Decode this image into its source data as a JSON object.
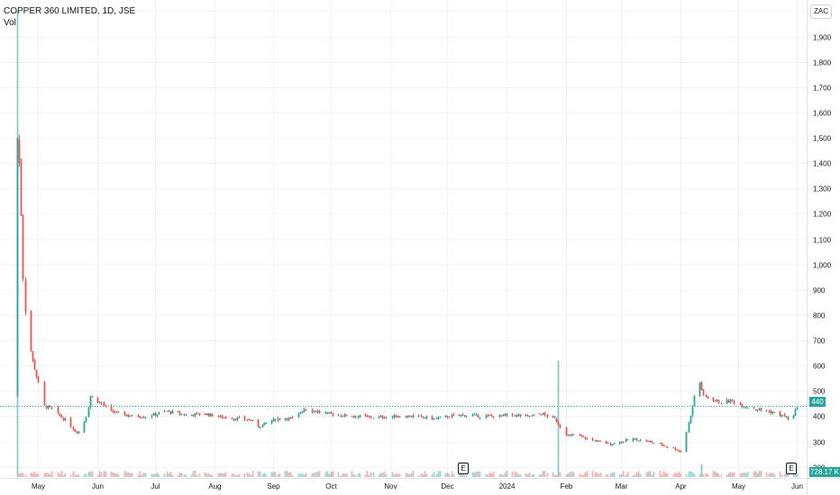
{
  "header": {
    "symbol_line": "COPPER 360 LIMITED, 1D, JSE",
    "volume_label": "Vol"
  },
  "currency_badge": "ZAC",
  "last_price_label": "440",
  "last_volume_label": "728.17 K",
  "earnings_marker_label": "E",
  "colors": {
    "up": "#26a69a",
    "down": "#ef5350",
    "grid": "#f0f3fa",
    "price_line": "#26a69a"
  },
  "chart_data": {
    "type": "candlestick",
    "title": "",
    "ylim": [
      160,
      2030
    ],
    "y_ticks": [
      2000,
      1900,
      1800,
      1700,
      1600,
      1500,
      1400,
      1300,
      1200,
      1100,
      1000,
      900,
      800,
      700,
      600,
      500,
      400,
      300,
      200
    ],
    "y_tick_labels": [
      "2,000",
      "1,900",
      "1,800",
      "1,700",
      "1,600",
      "1,500",
      "1,400",
      "1,300",
      "1,200",
      "1,100",
      "1,000",
      "900",
      "800",
      "700",
      "600",
      "500",
      "400",
      "300",
      "200"
    ],
    "x_labels": [
      "May",
      "Jun",
      "Jul",
      "Aug",
      "Sep",
      "Oct",
      "Nov",
      "Dec",
      "2024",
      "Feb",
      "Mar",
      "Apr",
      "May",
      "Jun"
    ],
    "x_label_days": [
      13,
      44,
      74,
      105,
      136,
      166,
      197,
      227,
      258,
      289,
      318,
      349,
      379,
      410
    ],
    "day_range": [
      -7,
      415
    ],
    "last_price": 440,
    "earnings_days": [
      227,
      410
    ],
    "price_anchors": [
      [
        0,
        480
      ],
      [
        1,
        600
      ],
      [
        2,
        1500
      ],
      [
        3,
        1400
      ],
      [
        4,
        1200
      ],
      [
        5,
        950
      ],
      [
        6,
        820
      ],
      [
        8,
        700
      ],
      [
        10,
        620
      ],
      [
        12,
        560
      ],
      [
        14,
        500
      ],
      [
        16,
        440
      ],
      [
        20,
        430
      ],
      [
        24,
        400
      ],
      [
        28,
        380
      ],
      [
        32,
        340
      ],
      [
        35,
        340
      ],
      [
        38,
        400
      ],
      [
        40,
        480
      ],
      [
        42,
        470
      ],
      [
        46,
        450
      ],
      [
        50,
        420
      ],
      [
        56,
        410
      ],
      [
        62,
        400
      ],
      [
        70,
        400
      ],
      [
        80,
        420
      ],
      [
        90,
        405
      ],
      [
        100,
        410
      ],
      [
        110,
        395
      ],
      [
        118,
        390
      ],
      [
        124,
        385
      ],
      [
        128,
        360
      ],
      [
        134,
        380
      ],
      [
        140,
        395
      ],
      [
        146,
        390
      ],
      [
        152,
        430
      ],
      [
        158,
        420
      ],
      [
        164,
        410
      ],
      [
        170,
        405
      ],
      [
        180,
        400
      ],
      [
        190,
        395
      ],
      [
        200,
        400
      ],
      [
        210,
        400
      ],
      [
        220,
        390
      ],
      [
        228,
        400
      ],
      [
        236,
        405
      ],
      [
        244,
        400
      ],
      [
        252,
        400
      ],
      [
        260,
        405
      ],
      [
        270,
        400
      ],
      [
        276,
        410
      ],
      [
        283,
        390
      ],
      [
        286,
        360
      ],
      [
        290,
        320
      ],
      [
        294,
        330
      ],
      [
        300,
        310
      ],
      [
        306,
        300
      ],
      [
        312,
        290
      ],
      [
        318,
        300
      ],
      [
        324,
        310
      ],
      [
        332,
        300
      ],
      [
        340,
        285
      ],
      [
        346,
        270
      ],
      [
        349,
        260
      ],
      [
        352,
        340
      ],
      [
        355,
        440
      ],
      [
        358,
        560
      ],
      [
        361,
        480
      ],
      [
        364,
        470
      ],
      [
        370,
        455
      ],
      [
        376,
        460
      ],
      [
        382,
        440
      ],
      [
        388,
        430
      ],
      [
        394,
        420
      ],
      [
        400,
        410
      ],
      [
        404,
        395
      ],
      [
        407,
        380
      ],
      [
        410,
        440
      ]
    ],
    "volume_spikes": [
      [
        2,
        2000
      ],
      [
        285,
        620
      ],
      [
        360,
        60
      ]
    ]
  }
}
